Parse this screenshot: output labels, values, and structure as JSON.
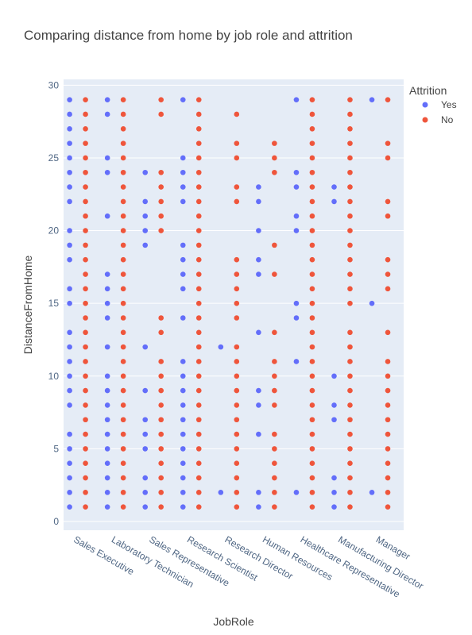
{
  "chart_data": {
    "type": "scatter",
    "title": "Comparing distance from home by job role and attrition",
    "xlabel": "JobRole",
    "ylabel": "DistanceFromHome",
    "ylim": [
      -0.6,
      30.4
    ],
    "yticks": [
      0,
      5,
      10,
      15,
      20,
      25,
      30
    ],
    "categories": [
      "Sales Executive",
      "Laboratory Technician",
      "Sales Representative",
      "Research Scientist",
      "Research Director",
      "Human Resources",
      "Healthcare Representative",
      "Manufacturing Director",
      "Manager"
    ],
    "legend": {
      "title": "Attrition",
      "placement": "top-right"
    },
    "grid": true,
    "series": [
      {
        "name": "Yes",
        "color": "#636efa",
        "points": {
          "Sales Executive": [
            1,
            2,
            3,
            4,
            5,
            6,
            8,
            9,
            10,
            11,
            12,
            13,
            15,
            16,
            18,
            19,
            20,
            22,
            23,
            24,
            25,
            26,
            27,
            28,
            29
          ],
          "Laboratory Technician": [
            1,
            2,
            3,
            4,
            5,
            6,
            7,
            8,
            9,
            10,
            12,
            14,
            15,
            16,
            17,
            21,
            24,
            25,
            28,
            29
          ],
          "Sales Representative": [
            1,
            2,
            3,
            5,
            6,
            7,
            9,
            12,
            19,
            20,
            21,
            22,
            24
          ],
          "Research Scientist": [
            1,
            2,
            3,
            4,
            5,
            6,
            7,
            8,
            9,
            10,
            11,
            14,
            16,
            17,
            18,
            19,
            22,
            23,
            24,
            25,
            29
          ],
          "Research Director": [
            2,
            12
          ],
          "Human Resources": [
            1,
            2,
            6,
            8,
            9,
            13,
            17,
            18,
            20,
            22,
            23
          ],
          "Healthcare Representative": [
            2,
            11,
            14,
            15,
            20,
            21,
            23,
            24,
            29
          ],
          "Manufacturing Director": [
            1,
            2,
            3,
            7,
            8,
            10,
            22,
            23
          ],
          "Manager": [
            2,
            15,
            29
          ]
        }
      },
      {
        "name": "No",
        "color": "#ef553b",
        "points": {
          "Sales Executive": [
            1,
            2,
            3,
            4,
            5,
            6,
            7,
            8,
            9,
            10,
            11,
            12,
            13,
            14,
            15,
            16,
            17,
            18,
            19,
            20,
            21,
            22,
            23,
            24,
            25,
            26,
            27,
            28,
            29
          ],
          "Laboratory Technician": [
            1,
            2,
            3,
            4,
            5,
            6,
            7,
            8,
            9,
            10,
            11,
            12,
            13,
            14,
            15,
            16,
            17,
            18,
            19,
            20,
            21,
            22,
            23,
            24,
            25,
            26,
            27,
            28,
            29
          ],
          "Sales Representative": [
            1,
            2,
            3,
            4,
            5,
            6,
            7,
            8,
            9,
            10,
            11,
            13,
            14,
            20,
            21,
            22,
            23,
            24,
            28,
            29
          ],
          "Research Scientist": [
            1,
            2,
            3,
            4,
            5,
            6,
            7,
            8,
            9,
            10,
            11,
            12,
            13,
            14,
            15,
            16,
            17,
            18,
            19,
            20,
            21,
            22,
            23,
            24,
            25,
            26,
            27,
            28,
            29
          ],
          "Research Director": [
            1,
            2,
            3,
            4,
            5,
            6,
            7,
            8,
            9,
            10,
            11,
            12,
            14,
            15,
            16,
            17,
            18,
            22,
            23,
            25,
            26,
            28
          ],
          "Human Resources": [
            1,
            2,
            3,
            4,
            5,
            6,
            8,
            9,
            10,
            11,
            13,
            17,
            19,
            24,
            25,
            26
          ],
          "Healthcare Representative": [
            1,
            2,
            3,
            4,
            5,
            6,
            7,
            8,
            9,
            10,
            11,
            12,
            13,
            14,
            15,
            16,
            17,
            18,
            19,
            20,
            21,
            22,
            23,
            24,
            25,
            26,
            27,
            28,
            29
          ],
          "Manufacturing Director": [
            1,
            2,
            3,
            4,
            5,
            6,
            7,
            8,
            9,
            10,
            11,
            12,
            13,
            15,
            16,
            17,
            18,
            19,
            20,
            21,
            22,
            23,
            24,
            25,
            26,
            27,
            28,
            29
          ],
          "Manager": [
            1,
            2,
            3,
            4,
            5,
            6,
            7,
            8,
            9,
            10,
            11,
            13,
            16,
            17,
            18,
            21,
            22,
            25,
            26,
            29
          ]
        }
      }
    ]
  }
}
